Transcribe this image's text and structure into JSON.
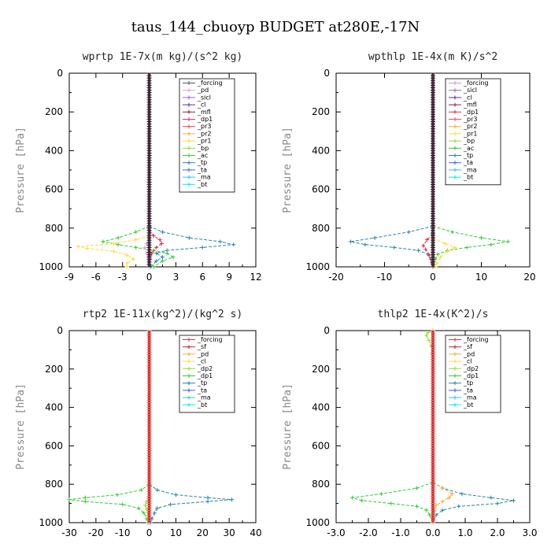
{
  "figure_title": "taus_144_cbuoyp  BUDGET at280E,-17N",
  "chart_data": [
    {
      "type": "line",
      "title": "wprtp  1E-7x(m kg)/(s^2 kg)",
      "ylabel": "Pressure [hPa]",
      "xlim": [
        -9,
        12
      ],
      "ylim": [
        0,
        1000
      ],
      "y_inverted": true,
      "xticks": [
        "-9",
        "-6",
        "-3",
        "0",
        "3",
        "6",
        "9",
        "12"
      ],
      "yticks": [
        "0",
        "200",
        "400",
        "600",
        "800",
        "1000"
      ],
      "legend": [
        {
          "name": "_forcing",
          "color": "#555555"
        },
        {
          "name": "_pd",
          "color": "#e0a0e0"
        },
        {
          "name": "_sicl",
          "color": "#9966cc"
        },
        {
          "name": "_cl",
          "color": "#663399"
        },
        {
          "name": "_mfl",
          "color": "#8b2252"
        },
        {
          "name": "_dp1",
          "color": "#e0304a"
        },
        {
          "name": "_pr3",
          "color": "#ff4466"
        },
        {
          "name": "_pr2",
          "color": "#ffaa33"
        },
        {
          "name": "_pr1",
          "color": "#ffdd33"
        },
        {
          "name": "_bp",
          "color": "#99dd33"
        },
        {
          "name": "_ac",
          "color": "#33cc33"
        },
        {
          "name": "_tp",
          "color": "#2288aa"
        },
        {
          "name": "_ta",
          "color": "#3366ff"
        },
        {
          "name": "_ma",
          "color": "#33bbff"
        },
        {
          "name": "_bt",
          "color": "#00eeee"
        }
      ],
      "series": [
        {
          "name": "_tp",
          "color": "#2288aa",
          "pressure": [
            790,
            820,
            850,
            870,
            885,
            900,
            915,
            930,
            950,
            970,
            1000
          ],
          "values": [
            0,
            1.5,
            4.5,
            8,
            9.5,
            6,
            2,
            0.8,
            1.5,
            0.8,
            0.2
          ]
        },
        {
          "name": "_ac",
          "color": "#33cc33",
          "pressure": [
            790,
            820,
            850,
            870,
            885,
            900,
            915,
            930,
            950,
            970,
            1000
          ],
          "values": [
            0,
            -1.5,
            -3.5,
            -5.2,
            -3.5,
            -1.5,
            0.5,
            2,
            2.7,
            1.5,
            0.5
          ]
        },
        {
          "name": "_pr1",
          "color": "#ffdd33",
          "pressure": [
            840,
            860,
            880,
            895,
            905,
            920,
            940,
            960,
            980,
            1000
          ],
          "values": [
            0,
            -1.5,
            -4,
            -8,
            -7,
            -4,
            -2.5,
            -1.8,
            -2.5,
            -2.5
          ]
        },
        {
          "name": "_dp1",
          "color": "#e0304a",
          "pressure": [
            810,
            840,
            860,
            880,
            900,
            930,
            960,
            1000
          ],
          "values": [
            0,
            0.5,
            1.2,
            1.4,
            0.8,
            0.3,
            0.1,
            0
          ]
        },
        {
          "name": "_pd",
          "color": "#e0a0e0",
          "pressure": [
            850,
            880,
            900,
            930,
            960,
            1000
          ],
          "values": [
            0,
            -0.3,
            -0.5,
            -0.3,
            -0.1,
            0
          ]
        }
      ]
    },
    {
      "type": "line",
      "title": "wpthlp  1E-4x(m K)/s^2",
      "ylabel": "Pressure [hPa]",
      "xlim": [
        -20,
        20
      ],
      "ylim": [
        0,
        1000
      ],
      "y_inverted": true,
      "xticks": [
        "-20",
        "-10",
        "0",
        "10",
        "20"
      ],
      "yticks": [
        "0",
        "200",
        "400",
        "600",
        "800",
        "1000"
      ],
      "legend": [
        {
          "name": "_forcing",
          "color": "#cc99cc"
        },
        {
          "name": "_sicl",
          "color": "#9966cc"
        },
        {
          "name": "_cl",
          "color": "#663399"
        },
        {
          "name": "_mfl",
          "color": "#8b2252"
        },
        {
          "name": "_dp1",
          "color": "#e0304a"
        },
        {
          "name": "_pr3",
          "color": "#ff4466"
        },
        {
          "name": "_pr2",
          "color": "#ffaa33"
        },
        {
          "name": "_pr1",
          "color": "#ffdd33"
        },
        {
          "name": "_bp",
          "color": "#99dd33"
        },
        {
          "name": "_ac",
          "color": "#33cc33"
        },
        {
          "name": "_tp",
          "color": "#2288aa"
        },
        {
          "name": "_ta",
          "color": "#3366ff"
        },
        {
          "name": "_ma",
          "color": "#33bbff"
        },
        {
          "name": "_bt",
          "color": "#00eeee"
        }
      ],
      "series": [
        {
          "name": "_tp",
          "color": "#2288aa",
          "pressure": [
            790,
            820,
            850,
            870,
            885,
            900,
            915,
            935,
            960,
            1000
          ],
          "values": [
            0,
            -5,
            -12,
            -17,
            -14,
            -8,
            -3,
            -1,
            -0.5,
            0
          ]
        },
        {
          "name": "_ac",
          "color": "#33cc33",
          "pressure": [
            790,
            820,
            850,
            870,
            885,
            900,
            915,
            935,
            960,
            1000
          ],
          "values": [
            0,
            4,
            10,
            15.5,
            12,
            7,
            3,
            1,
            0.5,
            0
          ]
        },
        {
          "name": "_pr1",
          "color": "#ffdd33",
          "pressure": [
            850,
            880,
            900,
            920,
            950,
            980,
            1000
          ],
          "values": [
            0,
            2.5,
            4.5,
            3,
            1.5,
            0.8,
            0.5
          ]
        },
        {
          "name": "_dp1",
          "color": "#e0304a",
          "pressure": [
            830,
            860,
            890,
            910,
            940,
            980,
            1000
          ],
          "values": [
            0,
            -1.2,
            -2,
            -1.5,
            -0.8,
            -0.2,
            0
          ]
        }
      ]
    },
    {
      "type": "line",
      "title": "rtp2  1E-11x(kg^2)/(kg^2 s)",
      "ylabel": "Pressure [hPa]",
      "xlim": [
        -30,
        40
      ],
      "ylim": [
        0,
        1000
      ],
      "y_inverted": true,
      "xticks": [
        "-30",
        "-20",
        "-10",
        "0",
        "10",
        "20",
        "30",
        "40"
      ],
      "yticks": [
        "0",
        "200",
        "400",
        "600",
        "800",
        "1000"
      ],
      "legend": [
        {
          "name": "_forcing",
          "color": "#e0304a"
        },
        {
          "name": "_sf",
          "color": "#cc2222"
        },
        {
          "name": "_pd",
          "color": "#ffaa33"
        },
        {
          "name": "_cl",
          "color": "#ffdd33"
        },
        {
          "name": "_dp2",
          "color": "#99dd33"
        },
        {
          "name": "_dp1",
          "color": "#33cc33"
        },
        {
          "name": "_tp",
          "color": "#2288aa"
        },
        {
          "name": "_ta",
          "color": "#3366ff"
        },
        {
          "name": "_ma",
          "color": "#33bbff"
        },
        {
          "name": "_bt",
          "color": "#00eeee"
        }
      ],
      "series": [
        {
          "name": "_tp",
          "color": "#2288aa",
          "pressure": [
            800,
            830,
            855,
            870,
            880,
            890,
            905,
            925,
            950,
            980,
            1000
          ],
          "values": [
            0,
            3,
            10,
            22,
            31,
            22,
            8,
            3,
            2,
            1,
            0.5
          ]
        },
        {
          "name": "_dp1",
          "color": "#33cc33",
          "pressure": [
            800,
            830,
            855,
            870,
            880,
            890,
            905,
            925,
            950,
            980,
            1000
          ],
          "values": [
            0,
            -3,
            -12,
            -24,
            -30,
            -24,
            -10,
            -4,
            -2,
            -1,
            -0.5
          ]
        },
        {
          "name": "_dp2",
          "color": "#99dd33",
          "pressure": [
            870,
            890,
            910,
            930,
            960,
            1000
          ],
          "values": [
            0,
            -1,
            -1.5,
            -1,
            -0.5,
            0
          ]
        }
      ]
    },
    {
      "type": "line",
      "title": "thlp2  1E-4x(K^2)/s",
      "ylabel": "Pressure [hPa]",
      "xlim": [
        -3.0,
        3.0
      ],
      "ylim": [
        0,
        1000
      ],
      "y_inverted": true,
      "xticks": [
        "-3.0",
        "-2.0",
        "-1.0",
        "0.0",
        "1.0",
        "2.0",
        "3.0"
      ],
      "yticks": [
        "0",
        "200",
        "400",
        "600",
        "800",
        "1000"
      ],
      "legend": [
        {
          "name": "_forcing",
          "color": "#e0304a"
        },
        {
          "name": "_sf",
          "color": "#cc2222"
        },
        {
          "name": "_pd",
          "color": "#ffaa33"
        },
        {
          "name": "_cl",
          "color": "#ffdd33"
        },
        {
          "name": "_dp2",
          "color": "#99dd33"
        },
        {
          "name": "_dp1",
          "color": "#33cc33"
        },
        {
          "name": "_tp",
          "color": "#2288aa"
        },
        {
          "name": "_ta",
          "color": "#3366ff"
        },
        {
          "name": "_ma",
          "color": "#33bbff"
        },
        {
          "name": "_bt",
          "color": "#00eeee"
        }
      ],
      "series": [
        {
          "name": "_tp",
          "color": "#2288aa",
          "pressure": [
            790,
            820,
            850,
            870,
            885,
            900,
            915,
            935,
            960,
            1000
          ],
          "values": [
            0,
            0.3,
            0.9,
            1.8,
            2.5,
            2.0,
            0.8,
            0.3,
            0.1,
            0
          ]
        },
        {
          "name": "_dp1",
          "color": "#33cc33",
          "pressure": [
            790,
            820,
            850,
            870,
            885,
            900,
            915,
            935,
            960,
            1000
          ],
          "values": [
            0,
            -0.5,
            -1.6,
            -2.5,
            -2.2,
            -1.3,
            -0.5,
            -0.2,
            -0.1,
            0
          ]
        },
        {
          "name": "_pd",
          "color": "#ffaa33",
          "pressure": [
            790,
            820,
            850,
            870,
            890,
            910,
            940,
            980,
            1000
          ],
          "values": [
            0,
            0.3,
            0.6,
            0.5,
            0.3,
            0.1,
            0.05,
            0,
            0
          ]
        },
        {
          "name": "_dp2",
          "color": "#99dd33",
          "pressure": [
            0,
            10,
            25,
            50,
            80,
            120,
            200,
            800,
            1000
          ],
          "values": [
            0,
            -0.15,
            -0.2,
            -0.12,
            -0.06,
            -0.02,
            0,
            0,
            0
          ]
        }
      ]
    }
  ]
}
